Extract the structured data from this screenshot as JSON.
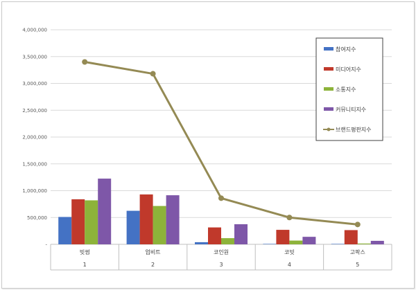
{
  "chart_data": {
    "type": "bar",
    "categories": [
      "빗썸",
      "업비트",
      "코인원",
      "코빗",
      "고팍스"
    ],
    "category_index": [
      "1",
      "2",
      "3",
      "4",
      "5"
    ],
    "ylim": [
      0,
      4000000
    ],
    "y_ticks": [
      {
        "value": 0,
        "label": "-"
      },
      {
        "value": 500000,
        "label": "500,000"
      },
      {
        "value": 1000000,
        "label": "1,000,000"
      },
      {
        "value": 1500000,
        "label": "1,500,000"
      },
      {
        "value": 2000000,
        "label": "2,000,000"
      },
      {
        "value": 2500000,
        "label": "2,500,000"
      },
      {
        "value": 3000000,
        "label": "3,000,000"
      },
      {
        "value": 3500000,
        "label": "3,500,000"
      },
      {
        "value": 4000000,
        "label": "4,000,000"
      }
    ],
    "grid": true,
    "legend_position": "right",
    "series": [
      {
        "name": "참여지수",
        "type": "bar",
        "color": "#4472c4",
        "values": [
          510000,
          625000,
          40000,
          8000,
          8000
        ]
      },
      {
        "name": "미디어지수",
        "type": "bar",
        "color": "#c0392b",
        "values": [
          840000,
          930000,
          315000,
          270000,
          265000
        ]
      },
      {
        "name": "소통지수",
        "type": "bar",
        "color": "#8db33a",
        "values": [
          820000,
          715000,
          115000,
          70000,
          15000
        ]
      },
      {
        "name": "커뮤니티지수",
        "type": "bar",
        "color": "#7e57a8",
        "values": [
          1225000,
          915000,
          375000,
          140000,
          65000
        ]
      },
      {
        "name": "브랜드평판지수",
        "type": "line",
        "color": "#948a54",
        "values": [
          3400000,
          3180000,
          860000,
          500000,
          370000
        ]
      }
    ]
  }
}
